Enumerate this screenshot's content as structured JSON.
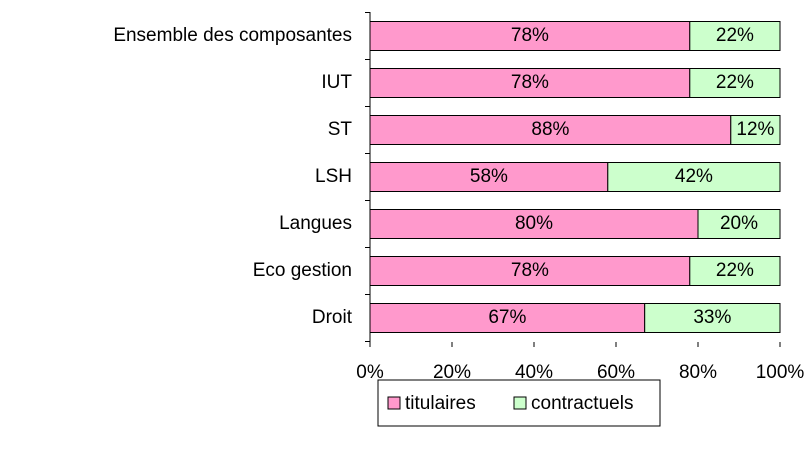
{
  "chart_data": {
    "type": "stacked-bar-horizontal",
    "categories": [
      "Ensemble des composantes",
      "IUT",
      "ST",
      "LSH",
      "Langues",
      "Eco gestion",
      "Droit"
    ],
    "series": [
      {
        "name": "titulaires",
        "color": "#ff99cc",
        "values": [
          78,
          78,
          88,
          58,
          80,
          78,
          67
        ],
        "value_labels": [
          "78%",
          "78%",
          "88%",
          "58%",
          "80%",
          "78%",
          "67%"
        ]
      },
      {
        "name": "contractuels",
        "color": "#ccffcc",
        "values": [
          22,
          22,
          12,
          42,
          20,
          22,
          33
        ],
        "value_labels": [
          "22%",
          "22%",
          "12%",
          "42%",
          "20%",
          "22%",
          "33%"
        ]
      }
    ],
    "xlim": [
      0,
      100
    ],
    "xticks": [
      {
        "value": 0,
        "label": "0%"
      },
      {
        "value": 20,
        "label": "20%"
      },
      {
        "value": 40,
        "label": "40%"
      },
      {
        "value": 60,
        "label": "60%"
      },
      {
        "value": 80,
        "label": "80%"
      },
      {
        "value": 100,
        "label": "100%"
      }
    ],
    "legend": "bottom"
  }
}
